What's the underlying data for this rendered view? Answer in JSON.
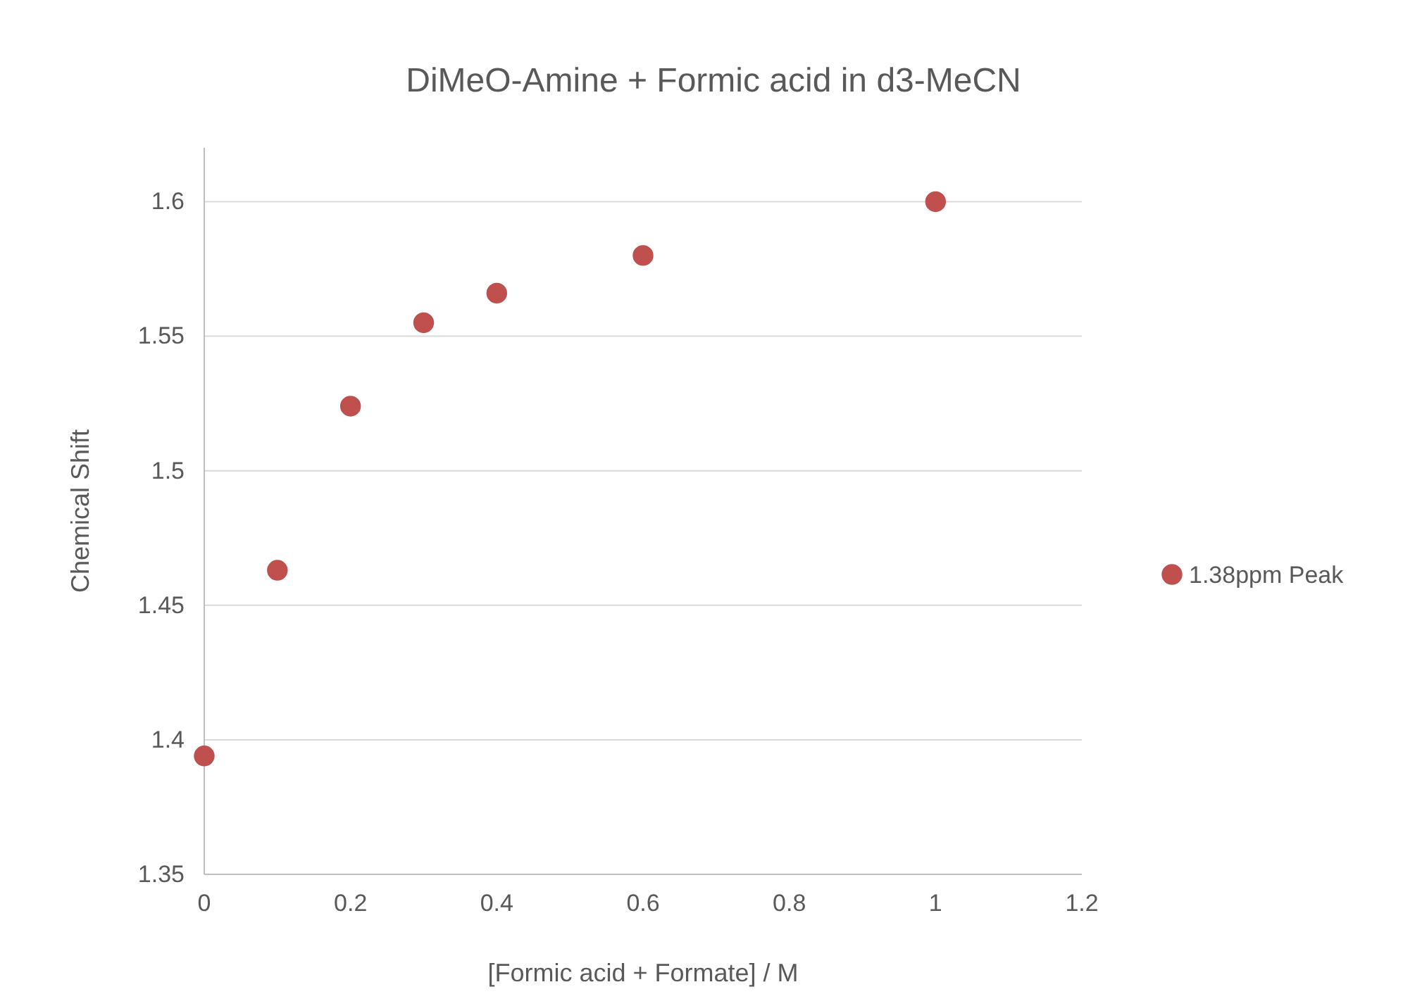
{
  "chart_data": {
    "type": "scatter",
    "title": "DiMeO-Amine + Formic acid in d3-MeCN",
    "xlabel": "[Formic acid + Formate] / M",
    "ylabel": "Chemical Shift",
    "x": [
      0,
      0.1,
      0.2,
      0.3,
      0.4,
      0.6,
      1
    ],
    "series": [
      {
        "name": "1.38ppm Peak",
        "color": "#c0504d",
        "values": [
          1.394,
          1.463,
          1.524,
          1.555,
          1.566,
          1.58,
          1.6
        ]
      }
    ],
    "xlim": [
      0,
      1.2
    ],
    "xticks": [
      0,
      0.2,
      0.4,
      0.6,
      0.8,
      1,
      1.2
    ],
    "ylim": [
      1.35,
      1.62
    ],
    "yticks": [
      1.35,
      1.4,
      1.45,
      1.5,
      1.55,
      1.6
    ],
    "grid": "y",
    "legend": "right",
    "marker": "circle"
  }
}
